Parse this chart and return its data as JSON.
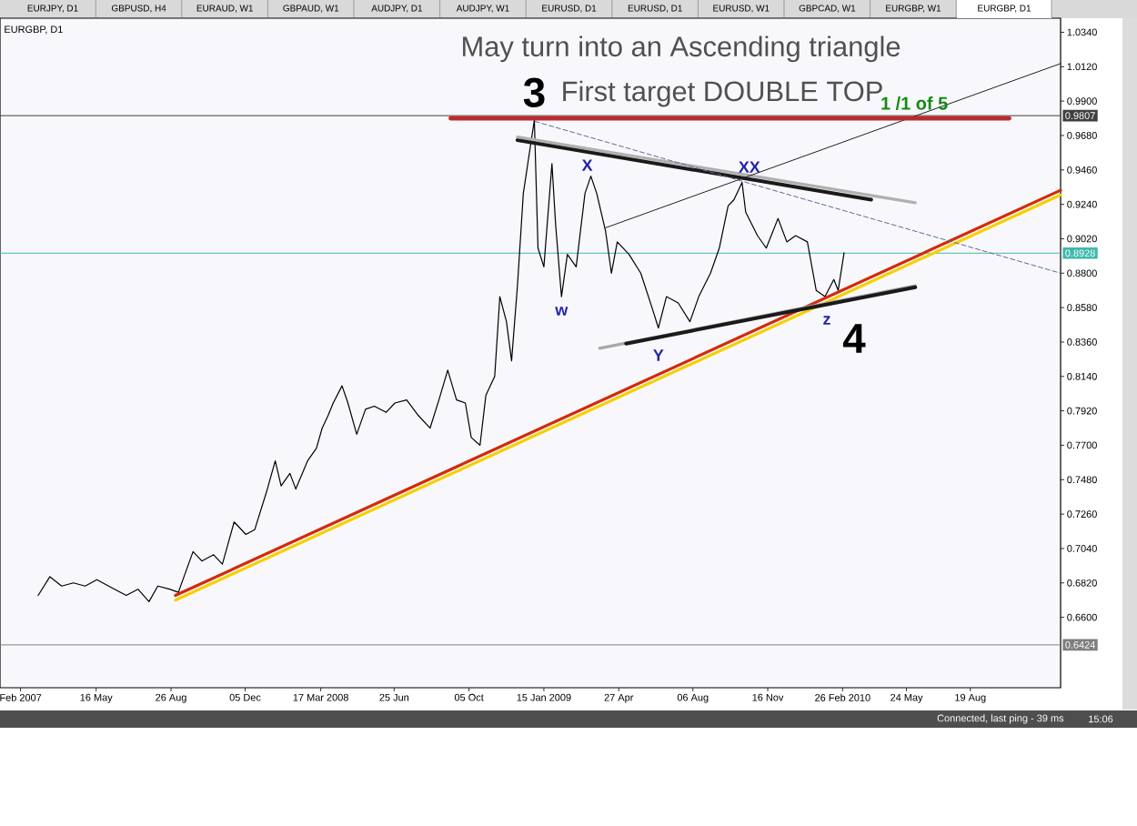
{
  "chart_data": {
    "type": "line",
    "title": "May turn into an Ascending triangle",
    "subtitle": "EURGBP, D1",
    "xlim": [
      "2007-01-05",
      "2010-12-20"
    ],
    "xticks": [
      {
        "value": "2007-02-02",
        "label": "Feb 2007"
      },
      {
        "value": "2007-05-16",
        "label": "16 May"
      },
      {
        "value": "2007-08-26",
        "label": "26 Aug"
      },
      {
        "value": "2007-12-05",
        "label": "05 Dec"
      },
      {
        "value": "2008-03-17",
        "label": "17 Mar 2008"
      },
      {
        "value": "2008-06-25",
        "label": "25 Jun"
      },
      {
        "value": "2008-10-05",
        "label": "05 Oct"
      },
      {
        "value": "2009-01-15",
        "label": "15 Jan 2009"
      },
      {
        "value": "2009-04-27",
        "label": "27 Apr"
      },
      {
        "value": "2009-08-06",
        "label": "06 Aug"
      },
      {
        "value": "2009-11-16",
        "label": "16 Nov"
      },
      {
        "value": "2010-02-26",
        "label": "26 Feb 2010"
      },
      {
        "value": "2010-05-24",
        "label": "24 May"
      },
      {
        "value": "2010-08-19",
        "label": "19 Aug"
      }
    ],
    "ylim": [
      0.615,
      1.043
    ],
    "yticks": [
      {
        "value": 1.034,
        "label": "1.0340"
      },
      {
        "value": 1.012,
        "label": "1.0120"
      },
      {
        "value": 0.99,
        "label": "0.9900"
      },
      {
        "value": 0.968,
        "label": "0.9680"
      },
      {
        "value": 0.946,
        "label": "0.9460"
      },
      {
        "value": 0.924,
        "label": "0.9240"
      },
      {
        "value": 0.902,
        "label": "0.9020"
      },
      {
        "value": 0.88,
        "label": "0.8800"
      },
      {
        "value": 0.858,
        "label": "0.8580"
      },
      {
        "value": 0.836,
        "label": "0.8360"
      },
      {
        "value": 0.814,
        "label": "0.8140"
      },
      {
        "value": 0.792,
        "label": "0.7920"
      },
      {
        "value": 0.77,
        "label": "0.7700"
      },
      {
        "value": 0.748,
        "label": "0.7480"
      },
      {
        "value": 0.726,
        "label": "0.7260"
      },
      {
        "value": 0.704,
        "label": "0.7040"
      },
      {
        "value": 0.682,
        "label": "0.6820"
      },
      {
        "value": 0.66,
        "label": "0.6600"
      }
    ],
    "ref_lines": [
      {
        "axis": "y",
        "value": 0.9807,
        "label": "0.9807",
        "color": "#404040"
      },
      {
        "axis": "y",
        "value": 0.8928,
        "label": "0.8928",
        "color": "#3fb8ac"
      },
      {
        "axis": "y",
        "value": 0.6424,
        "label": "0.6424",
        "color": "#7f7f7f"
      }
    ],
    "annotations": [
      "1 /1 of 5",
      "EURJPY, D1",
      "GBPUSD, H4",
      "EURAUD, W1",
      "GBPAUD, W1",
      "AUDJPY, D1",
      "AUDJPY, W1",
      "EURUSD, D1",
      "EURUSD, D1",
      "EURUSD, W1",
      "GBPCAD, W1",
      "EURGBP, W1",
      "EURGBP, D1",
      "Connected, last ping - 39 ms",
      "15:06",
      {
        "text": "First target DOUBLE TOP",
        "x": "2009-09-15",
        "y": 0.979
      },
      {
        "text": "3",
        "x": "2009-01-02",
        "y": 0.978
      },
      {
        "text": "X",
        "x": "2009-03-20",
        "y": 0.942
      },
      {
        "text": "XX",
        "x": "2009-10-12",
        "y": 0.938
      },
      {
        "text": "w",
        "x": "2009-02-08",
        "y": 0.865
      },
      {
        "text": "Y",
        "x": "2009-06-20",
        "y": 0.845
      },
      {
        "text": "z",
        "x": "2010-02-02",
        "y": 0.865
      },
      {
        "text": "4",
        "x": "2010-02-02",
        "y": 0.865
      }
    ],
    "series": [
      {
        "color": "#000000",
        "x": [
          "2007-02-26",
          "2007-03-14",
          "2007-03-30",
          "2007-04-15",
          "2007-05-01",
          "2007-05-17",
          "2007-06-02",
          "2007-06-26",
          "2007-07-12",
          "2007-07-27",
          "2007-08-08",
          "2007-08-24",
          "2007-09-05",
          "2007-09-25",
          "2007-10-07",
          "2007-10-23",
          "2007-11-04",
          "2007-11-20",
          "2007-12-06",
          "2007-12-18",
          "2008-01-03",
          "2008-01-15",
          "2008-01-23",
          "2008-02-04",
          "2008-02-12",
          "2008-02-28",
          "2008-03-11",
          "2008-03-19",
          "2008-03-27",
          "2008-04-03",
          "2008-04-15",
          "2008-04-23",
          "2008-05-05",
          "2008-05-17",
          "2008-05-29",
          "2008-06-14",
          "2008-06-26",
          "2008-07-12",
          "2008-07-28",
          "2008-08-13",
          "2008-08-25",
          "2008-09-06",
          "2008-09-18",
          "2008-09-30",
          "2008-10-08",
          "2008-10-20",
          "2008-10-28",
          "2008-11-09",
          "2008-11-16",
          "2008-11-25",
          "2008-12-02",
          "2008-12-10",
          "2008-12-18",
          "2009-01-02",
          "2009-01-07",
          "2009-01-15",
          "2009-01-26",
          "2009-01-31",
          "2009-02-08",
          "2009-02-16",
          "2009-02-28",
          "2009-03-12",
          "2009-03-20",
          "2009-03-28",
          "2009-04-09",
          "2009-04-17",
          "2009-04-25",
          "2009-05-11",
          "2009-05-27",
          "2009-06-12",
          "2009-06-20",
          "2009-07-01",
          "2009-07-17",
          "2009-08-02",
          "2009-08-14",
          "2009-08-30",
          "2009-09-11",
          "2009-09-23",
          "2009-10-01",
          "2009-10-12",
          "2009-10-17",
          "2009-11-02",
          "2009-11-14",
          "2009-11-30",
          "2009-12-12",
          "2009-12-24",
          "2010-01-09",
          "2010-01-21",
          "2010-02-02",
          "2010-02-14",
          "2010-02-20",
          "2010-02-28"
        ],
        "values": [
          0.674,
          0.686,
          0.68,
          0.682,
          0.68,
          0.684,
          0.68,
          0.674,
          0.678,
          0.67,
          0.68,
          0.678,
          0.676,
          0.702,
          0.696,
          0.7,
          0.694,
          0.721,
          0.713,
          0.716,
          0.74,
          0.76,
          0.744,
          0.752,
          0.742,
          0.76,
          0.768,
          0.781,
          0.789,
          0.797,
          0.808,
          0.797,
          0.777,
          0.793,
          0.795,
          0.791,
          0.797,
          0.799,
          0.789,
          0.781,
          0.799,
          0.818,
          0.799,
          0.797,
          0.775,
          0.77,
          0.802,
          0.814,
          0.865,
          0.849,
          0.824,
          0.872,
          0.931,
          0.978,
          0.896,
          0.884,
          0.95,
          0.911,
          0.865,
          0.892,
          0.884,
          0.931,
          0.942,
          0.931,
          0.907,
          0.88,
          0.9,
          0.892,
          0.88,
          0.857,
          0.845,
          0.865,
          0.861,
          0.849,
          0.865,
          0.88,
          0.896,
          0.923,
          0.927,
          0.938,
          0.919,
          0.904,
          0.896,
          0.915,
          0.9,
          0.904,
          0.9,
          0.869,
          0.865,
          0.876,
          0.869,
          0.893
        ]
      },
      {
        "color": "#f5d000",
        "x": [
          "2007-09-01",
          "2010-12-20"
        ],
        "values": [
          0.671,
          0.93
        ]
      },
      {
        "color": "#d42a0a",
        "x": [
          "2007-09-01",
          "2010-12-20"
        ],
        "values": [
          0.674,
          0.933
        ]
      },
      {
        "color": "#b0b0b0",
        "x": [
          "2008-12-10",
          "2010-06-05"
        ],
        "values": [
          0.967,
          0.925
        ]
      },
      {
        "color": "#1a1a1a",
        "x": [
          "2008-12-10",
          "2010-04-06"
        ],
        "values": [
          0.965,
          0.927
        ]
      },
      {
        "color": "#a8a8a8",
        "x": [
          "2009-04-01",
          "2010-06-05"
        ],
        "values": [
          0.832,
          0.872
        ]
      },
      {
        "color": "#1a1a1a",
        "x": [
          "2009-05-07",
          "2010-06-05"
        ],
        "values": [
          0.835,
          0.871
        ]
      },
      {
        "color": "#202020",
        "x": [
          "2009-04-09",
          "2010-12-20"
        ],
        "values": [
          0.909,
          1.014
        ]
      },
      {
        "color": "#5a6a9a",
        "x": [
          "2009-01-03",
          "2010-12-20"
        ],
        "values": [
          0.977,
          0.88
        ],
        "line_style": "dashed"
      },
      {
        "color": "#c0282d",
        "x": [
          "2008-09-10",
          "2010-10-11"
        ],
        "values": [
          0.979,
          0.979
        ]
      }
    ]
  }
}
